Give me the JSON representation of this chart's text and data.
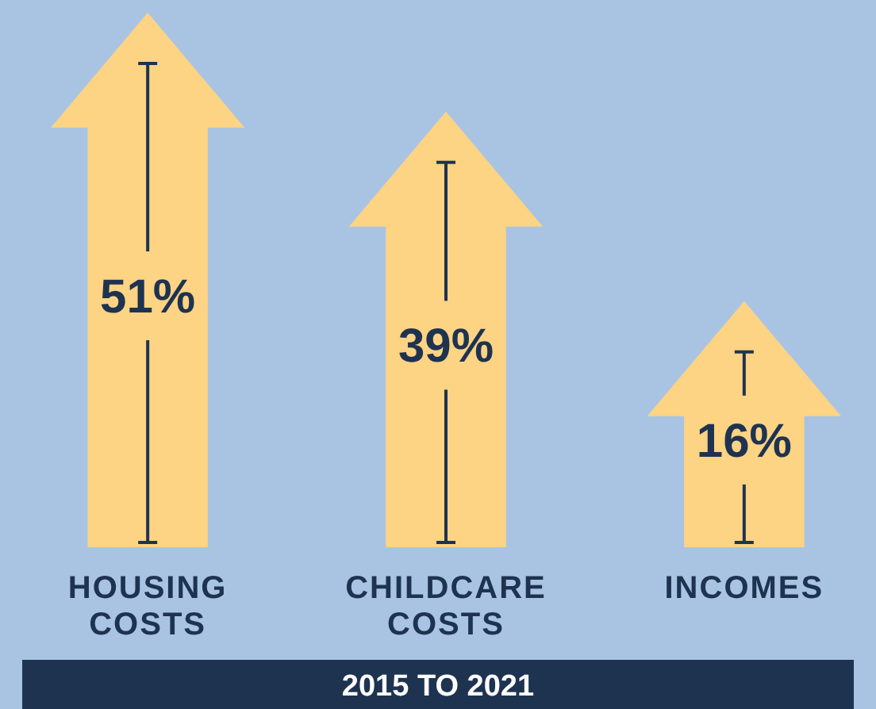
{
  "chart_data": {
    "type": "bar",
    "categories": [
      "HOUSING COSTS",
      "CHILDCARE COSTS",
      "INCOMES"
    ],
    "values": [
      51,
      39,
      16
    ],
    "color": "#fdd384",
    "value_labels": [
      "51%",
      "39%",
      "16%"
    ],
    "annotations": [
      "2015 TO 2021"
    ]
  }
}
